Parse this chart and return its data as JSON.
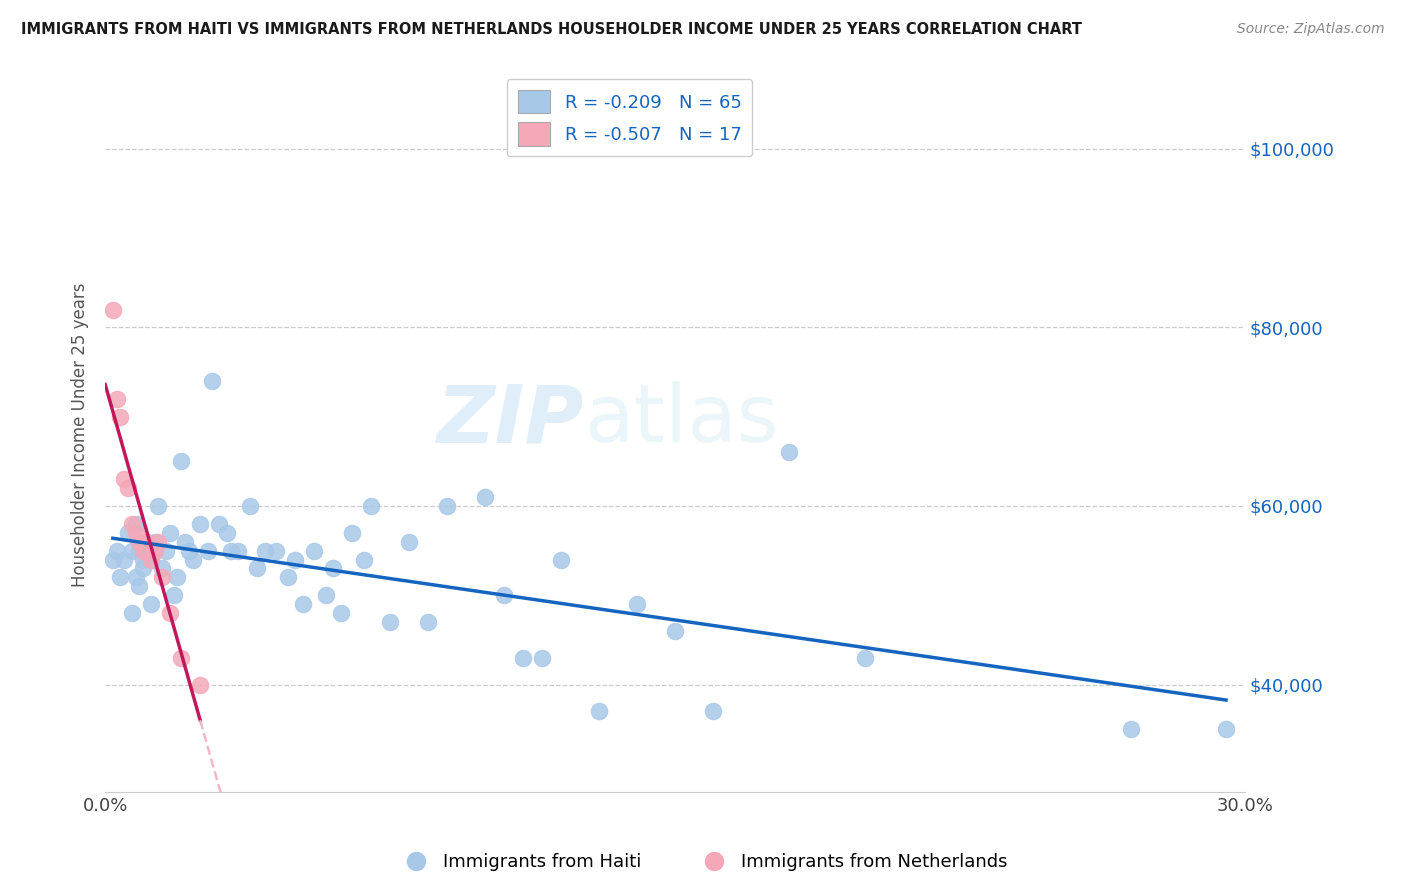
{
  "title": "IMMIGRANTS FROM HAITI VS IMMIGRANTS FROM NETHERLANDS HOUSEHOLDER INCOME UNDER 25 YEARS CORRELATION CHART",
  "source": "Source: ZipAtlas.com",
  "ylabel": "Householder Income Under 25 years",
  "xlim": [
    0.0,
    0.3
  ],
  "ylim": [
    28000,
    108000
  ],
  "ytick_labels": [
    "$40,000",
    "$60,000",
    "$80,000",
    "$100,000"
  ],
  "ytick_positions": [
    40000,
    60000,
    80000,
    100000
  ],
  "haiti_R": -0.209,
  "haiti_N": 65,
  "netherlands_R": -0.507,
  "netherlands_N": 17,
  "legend_label_haiti": "Immigrants from Haiti",
  "legend_label_netherlands": "Immigrants from Netherlands",
  "haiti_color": "#a8c8e8",
  "netherlands_color": "#f4a8b8",
  "haiti_line_color": "#1565c0",
  "netherlands_line_color": "#c2185b",
  "netherlands_dashed_color": "#f0b8c8",
  "watermark_zip": "ZIP",
  "watermark_atlas": "atlas",
  "background_color": "#ffffff",
  "haiti_x": [
    0.002,
    0.003,
    0.004,
    0.005,
    0.006,
    0.007,
    0.007,
    0.008,
    0.008,
    0.009,
    0.009,
    0.01,
    0.01,
    0.011,
    0.012,
    0.012,
    0.013,
    0.014,
    0.015,
    0.016,
    0.017,
    0.018,
    0.019,
    0.02,
    0.021,
    0.022,
    0.023,
    0.025,
    0.027,
    0.028,
    0.03,
    0.032,
    0.033,
    0.035,
    0.038,
    0.04,
    0.042,
    0.045,
    0.048,
    0.05,
    0.052,
    0.055,
    0.058,
    0.06,
    0.062,
    0.065,
    0.068,
    0.07,
    0.075,
    0.08,
    0.085,
    0.09,
    0.1,
    0.105,
    0.11,
    0.115,
    0.12,
    0.13,
    0.14,
    0.15,
    0.16,
    0.18,
    0.2,
    0.27,
    0.295
  ],
  "haiti_y": [
    54000,
    55000,
    52000,
    54000,
    57000,
    48000,
    55000,
    52000,
    58000,
    51000,
    55000,
    54000,
    53000,
    55000,
    49000,
    54000,
    56000,
    60000,
    53000,
    55000,
    57000,
    50000,
    52000,
    65000,
    56000,
    55000,
    54000,
    58000,
    55000,
    74000,
    58000,
    57000,
    55000,
    55000,
    60000,
    53000,
    55000,
    55000,
    52000,
    54000,
    49000,
    55000,
    50000,
    53000,
    48000,
    57000,
    54000,
    60000,
    47000,
    56000,
    47000,
    60000,
    61000,
    50000,
    43000,
    43000,
    54000,
    37000,
    49000,
    46000,
    37000,
    66000,
    43000,
    35000,
    35000
  ],
  "netherlands_x": [
    0.002,
    0.003,
    0.004,
    0.005,
    0.006,
    0.007,
    0.008,
    0.009,
    0.01,
    0.011,
    0.012,
    0.013,
    0.014,
    0.015,
    0.017,
    0.02,
    0.025
  ],
  "netherlands_y": [
    82000,
    72000,
    70000,
    63000,
    62000,
    58000,
    57000,
    56000,
    55000,
    56000,
    54000,
    55000,
    56000,
    52000,
    48000,
    43000,
    40000
  ]
}
